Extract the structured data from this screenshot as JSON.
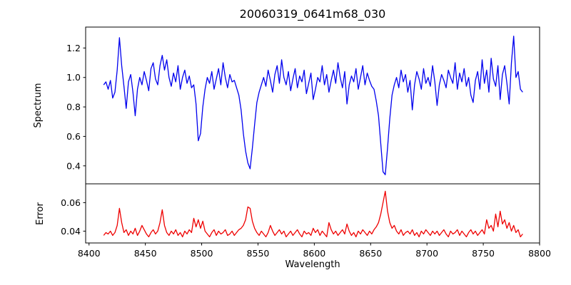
{
  "title": "20060319_0641m68_030",
  "axes": {
    "xlabel": "Wavelength",
    "x_ticks": [
      8400,
      8450,
      8500,
      8550,
      8600,
      8650,
      8700,
      8750,
      8800
    ],
    "xlim": [
      8397,
      8800
    ],
    "panels": [
      {
        "name": "spectrum",
        "ylabel": "Spectrum",
        "y_ticks": [
          0.4,
          0.6,
          0.8,
          1.0,
          1.2
        ],
        "y_tick_labels": [
          "0.4",
          "0.6",
          "0.8",
          "1.0",
          "1.2"
        ],
        "ylim": [
          0.278,
          1.342
        ],
        "line_color": "#0000ee"
      },
      {
        "name": "error",
        "ylabel": "Error",
        "y_ticks": [
          0.04,
          0.06
        ],
        "y_tick_labels": [
          "0.04",
          "0.06"
        ],
        "ylim": [
          0.0317,
          0.0732
        ],
        "line_color": "#ee0000"
      }
    ]
  },
  "chart_data": [
    {
      "type": "line",
      "name": "Spectrum",
      "color": "#0000ee",
      "x_start": 8413,
      "x_step": 2,
      "values": [
        0.95,
        0.97,
        0.92,
        0.98,
        0.86,
        0.9,
        1.05,
        1.27,
        1.08,
        0.94,
        0.79,
        0.97,
        1.02,
        0.9,
        0.74,
        0.92,
        1.0,
        0.95,
        1.04,
        0.98,
        0.91,
        1.06,
        1.1,
        0.99,
        0.95,
        1.08,
        1.15,
        1.05,
        1.12,
        1.0,
        0.94,
        1.03,
        0.97,
        1.08,
        0.92,
        1.0,
        1.05,
        0.96,
        1.01,
        0.93,
        0.95,
        0.82,
        0.57,
        0.62,
        0.8,
        0.92,
        1.0,
        0.96,
        1.04,
        0.92,
        0.99,
        1.06,
        0.95,
        1.1,
        1.0,
        0.93,
        1.02,
        0.97,
        0.98,
        0.93,
        0.88,
        0.78,
        0.62,
        0.5,
        0.42,
        0.38,
        0.52,
        0.68,
        0.83,
        0.9,
        0.95,
        1.0,
        0.94,
        1.05,
        0.98,
        0.9,
        1.02,
        1.08,
        0.96,
        1.12,
        1.0,
        0.95,
        1.04,
        0.91,
        0.99,
        1.06,
        0.93,
        1.01,
        0.97,
        1.05,
        0.89,
        0.96,
        1.03,
        0.85,
        0.92,
        1.0,
        0.97,
        1.08,
        0.95,
        1.02,
        0.9,
        0.98,
        1.05,
        0.96,
        1.1,
        1.0,
        0.93,
        1.04,
        0.82,
        0.95,
        1.01,
        0.97,
        1.06,
        0.92,
        1.0,
        1.08,
        0.95,
        1.03,
        0.98,
        0.94,
        0.92,
        0.84,
        0.74,
        0.55,
        0.36,
        0.34,
        0.52,
        0.72,
        0.88,
        0.95,
        1.0,
        0.93,
        1.05,
        0.97,
        1.02,
        0.9,
        0.98,
        0.78,
        0.95,
        1.04,
        0.99,
        0.92,
        1.06,
        0.96,
        1.0,
        0.94,
        1.08,
        0.97,
        0.81,
        0.95,
        1.02,
        0.98,
        0.93,
        1.05,
        1.0,
        0.96,
        1.1,
        0.92,
        1.03,
        0.97,
        1.06,
        0.94,
        1.0,
        0.88,
        0.83,
        0.98,
        1.04,
        0.92,
        1.12,
        0.96,
        1.05,
        0.9,
        1.13,
        0.99,
        0.94,
        1.08,
        0.85,
        1.02,
        1.08,
        0.96,
        0.82,
        1.1,
        1.28,
        1.0,
        1.04,
        0.92,
        0.9
      ]
    },
    {
      "type": "line",
      "name": "Error",
      "color": "#ee0000",
      "x_start": 8413,
      "x_step": 2,
      "values": [
        0.037,
        0.039,
        0.038,
        0.04,
        0.037,
        0.039,
        0.044,
        0.056,
        0.046,
        0.039,
        0.041,
        0.037,
        0.04,
        0.038,
        0.042,
        0.037,
        0.04,
        0.044,
        0.041,
        0.038,
        0.036,
        0.039,
        0.041,
        0.038,
        0.04,
        0.046,
        0.055,
        0.044,
        0.039,
        0.037,
        0.04,
        0.038,
        0.041,
        0.037,
        0.039,
        0.036,
        0.04,
        0.038,
        0.041,
        0.039,
        0.049,
        0.043,
        0.048,
        0.042,
        0.047,
        0.04,
        0.038,
        0.036,
        0.039,
        0.041,
        0.037,
        0.04,
        0.038,
        0.039,
        0.041,
        0.037,
        0.038,
        0.04,
        0.037,
        0.039,
        0.041,
        0.042,
        0.044,
        0.048,
        0.057,
        0.056,
        0.047,
        0.042,
        0.039,
        0.037,
        0.04,
        0.038,
        0.036,
        0.039,
        0.044,
        0.04,
        0.037,
        0.039,
        0.041,
        0.038,
        0.04,
        0.036,
        0.038,
        0.04,
        0.037,
        0.039,
        0.041,
        0.038,
        0.036,
        0.04,
        0.038,
        0.039,
        0.037,
        0.042,
        0.039,
        0.041,
        0.037,
        0.04,
        0.038,
        0.036,
        0.046,
        0.041,
        0.038,
        0.04,
        0.037,
        0.039,
        0.041,
        0.038,
        0.045,
        0.04,
        0.037,
        0.039,
        0.036,
        0.04,
        0.038,
        0.041,
        0.039,
        0.037,
        0.04,
        0.038,
        0.041,
        0.043,
        0.046,
        0.052,
        0.06,
        0.068,
        0.054,
        0.046,
        0.042,
        0.044,
        0.04,
        0.038,
        0.041,
        0.037,
        0.039,
        0.04,
        0.038,
        0.041,
        0.037,
        0.039,
        0.036,
        0.04,
        0.038,
        0.041,
        0.039,
        0.037,
        0.04,
        0.038,
        0.04,
        0.037,
        0.039,
        0.041,
        0.038,
        0.036,
        0.04,
        0.038,
        0.039,
        0.041,
        0.037,
        0.04,
        0.038,
        0.036,
        0.039,
        0.041,
        0.038,
        0.04,
        0.037,
        0.039,
        0.041,
        0.038,
        0.048,
        0.042,
        0.044,
        0.04,
        0.052,
        0.043,
        0.054,
        0.045,
        0.048,
        0.042,
        0.046,
        0.04,
        0.044,
        0.039,
        0.041,
        0.036,
        0.038
      ]
    }
  ]
}
